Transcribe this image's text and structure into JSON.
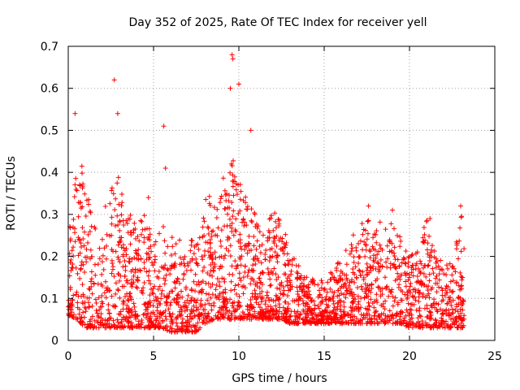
{
  "chart_data": {
    "type": "scatter",
    "title": "Day 352 of 2025, Rate Of TEC Index for receiver yell",
    "xlabel": "GPS time / hours",
    "ylabel": "ROTI / TECUs",
    "xlim": [
      0,
      25
    ],
    "ylim": [
      0,
      0.7
    ],
    "xticks": [
      0,
      5,
      10,
      15,
      20,
      25
    ],
    "yticks": [
      0,
      0.1,
      0.2,
      0.3,
      0.4,
      0.5,
      0.6,
      0.7
    ],
    "xtick_labels": [
      "0",
      "5",
      "10",
      "15",
      "20",
      "25"
    ],
    "ytick_labels": [
      "0",
      "0.1",
      "0.2",
      "0.3",
      "0.4",
      "0.5",
      "0.6",
      "0.7"
    ],
    "grid": true,
    "grid_style": "dotted",
    "marker": "+",
    "color": "#ff0000",
    "x_range_of_data": [
      0,
      23.2
    ],
    "notable_points": [
      {
        "x": 0.4,
        "y": 0.54
      },
      {
        "x": 2.7,
        "y": 0.62
      },
      {
        "x": 2.9,
        "y": 0.54
      },
      {
        "x": 5.6,
        "y": 0.51
      },
      {
        "x": 5.7,
        "y": 0.41
      },
      {
        "x": 9.6,
        "y": 0.68
      },
      {
        "x": 9.65,
        "y": 0.67
      },
      {
        "x": 9.5,
        "y": 0.6
      },
      {
        "x": 10.0,
        "y": 0.61
      },
      {
        "x": 10.7,
        "y": 0.5
      },
      {
        "x": 4.7,
        "y": 0.34
      },
      {
        "x": 17.6,
        "y": 0.32
      },
      {
        "x": 19.0,
        "y": 0.31
      },
      {
        "x": 21.2,
        "y": 0.29
      },
      {
        "x": 23.0,
        "y": 0.32
      }
    ],
    "envelope_hours": [
      0,
      0.5,
      1,
      1.5,
      2,
      2.5,
      3,
      3.5,
      4,
      4.5,
      5,
      5.5,
      6,
      6.5,
      7,
      7.5,
      8,
      8.5,
      9,
      9.5,
      10,
      10.5,
      11,
      11.5,
      12,
      12.5,
      13,
      13.5,
      14,
      14.5,
      15,
      15.5,
      16,
      16.5,
      17,
      17.5,
      18,
      18.5,
      19,
      19.5,
      20,
      20.5,
      21,
      21.5,
      22,
      22.5,
      23
    ],
    "envelope_roti": [
      0.28,
      0.4,
      0.45,
      0.3,
      0.3,
      0.36,
      0.4,
      0.32,
      0.28,
      0.3,
      0.26,
      0.28,
      0.25,
      0.24,
      0.25,
      0.24,
      0.38,
      0.33,
      0.38,
      0.45,
      0.42,
      0.35,
      0.3,
      0.25,
      0.32,
      0.28,
      0.22,
      0.18,
      0.15,
      0.15,
      0.14,
      0.17,
      0.2,
      0.23,
      0.3,
      0.3,
      0.3,
      0.27,
      0.28,
      0.25,
      0.2,
      0.22,
      0.29,
      0.22,
      0.18,
      0.2,
      0.3
    ],
    "baseline_roti": [
      0.06,
      0.05,
      0.03,
      0.03,
      0.03,
      0.03,
      0.03,
      0.03,
      0.03,
      0.03,
      0.03,
      0.03,
      0.02,
      0.02,
      0.02,
      0.02,
      0.04,
      0.05,
      0.05,
      0.05,
      0.05,
      0.05,
      0.05,
      0.05,
      0.05,
      0.05,
      0.04,
      0.04,
      0.04,
      0.04,
      0.04,
      0.04,
      0.04,
      0.04,
      0.04,
      0.04,
      0.04,
      0.04,
      0.04,
      0.04,
      0.03,
      0.03,
      0.03,
      0.03,
      0.03,
      0.03,
      0.03
    ]
  }
}
